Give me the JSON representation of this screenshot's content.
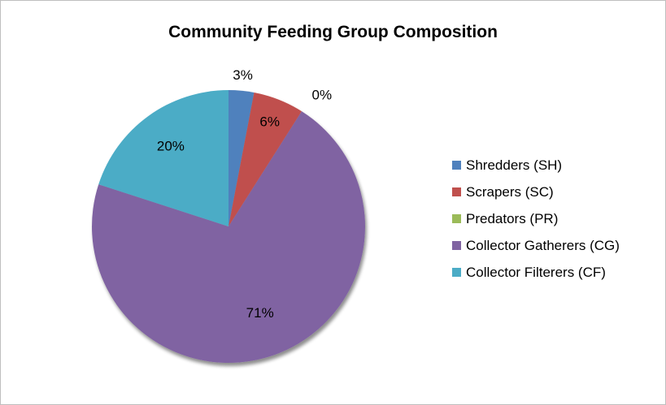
{
  "chart_data": {
    "type": "pie",
    "title": "Community Feeding Group Composition",
    "categories": [
      "Shredders (SH)",
      "Scrapers (SC)",
      "Predators (PR)",
      "Collector Gatherers (CG)",
      "Collector Filterers (CF)"
    ],
    "values": [
      3,
      6,
      0,
      71,
      20
    ],
    "labels": [
      "3%",
      "6%",
      "0%",
      "71%",
      "20%"
    ],
    "colors": [
      "#4f81bd",
      "#c0504d",
      "#9bbb59",
      "#8064a2",
      "#4bacc6"
    ],
    "legend_position": "right"
  }
}
